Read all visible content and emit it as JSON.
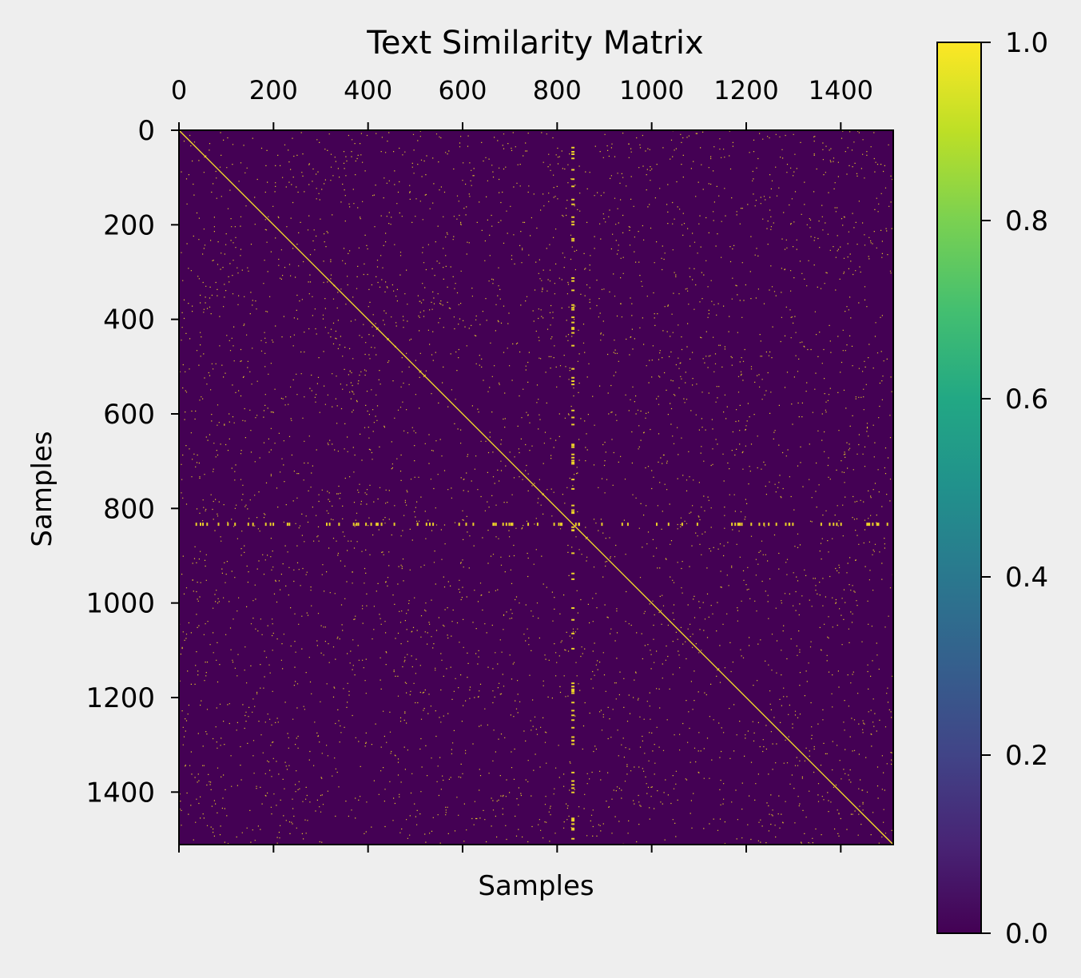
{
  "chart_data": {
    "type": "heatmap",
    "title": "Text Similarity Matrix",
    "xlabel": "Samples",
    "ylabel": "Samples",
    "matrix_size": 1511,
    "xlim": [
      0,
      1511
    ],
    "ylim": [
      0,
      1511
    ],
    "x_tick_values": [
      0,
      200,
      400,
      600,
      800,
      1000,
      1200,
      1400
    ],
    "x_tick_labels": [
      "0",
      "200",
      "400",
      "600",
      "800",
      "1000",
      "1200",
      "1400"
    ],
    "x_tick_labels_position": "top",
    "y_tick_values": [
      0,
      200,
      400,
      600,
      800,
      1000,
      1200,
      1400
    ],
    "y_tick_labels": [
      "0",
      "200",
      "400",
      "600",
      "800",
      "1000",
      "1200",
      "1400"
    ],
    "colormap": "viridis",
    "colorbar": {
      "range": [
        0,
        1
      ],
      "tick_values": [
        0,
        0.2,
        0.4,
        0.6,
        0.8,
        1.0
      ],
      "tick_labels": [
        "0.0",
        "0.2",
        "0.4",
        "0.6",
        "0.8",
        "1.0"
      ]
    },
    "diagonal_value": 1.0,
    "background_value": 0.0,
    "highlighted_row": 830,
    "highlighted_column": 830,
    "colors": {
      "low": "#440154",
      "high": "#fde725",
      "page_background": "#eeeeee"
    }
  }
}
